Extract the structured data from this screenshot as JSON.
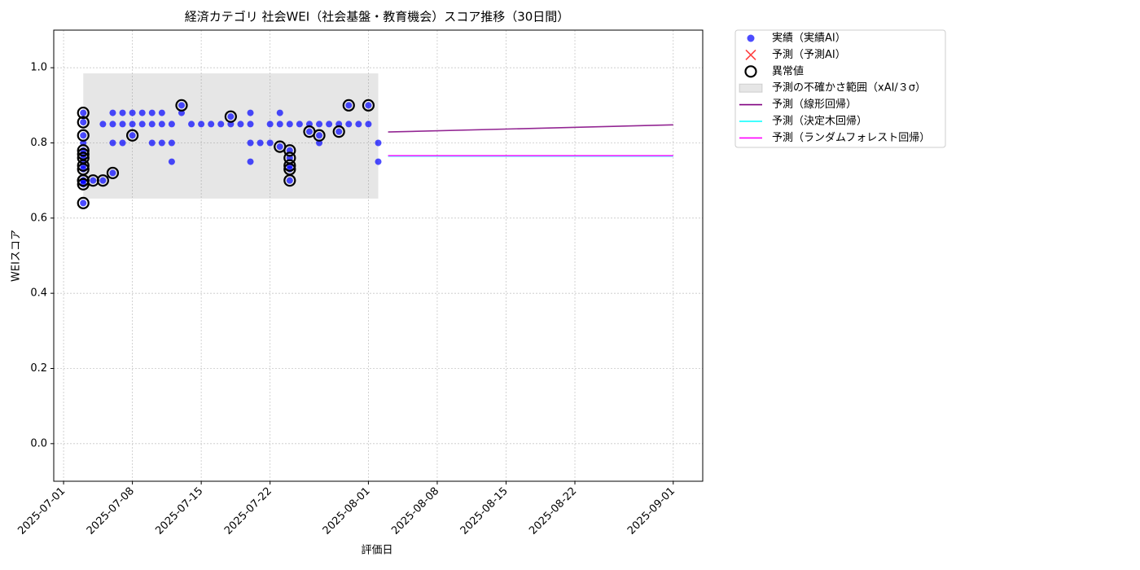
{
  "chart_data": {
    "type": "scatter",
    "title": "経済カテゴリ 社会WEI（社会基盤・教育機会）スコア推移（30日間）",
    "xlabel": "評価日",
    "ylabel": "WEIスコア",
    "xlim": [
      "2025-06-30",
      "2025-09-04"
    ],
    "ylim": [
      -0.1,
      1.1
    ],
    "xticks": [
      "2025-07-01",
      "2025-07-08",
      "2025-07-15",
      "2025-07-22",
      "2025-08-01",
      "2025-08-08",
      "2025-08-15",
      "2025-08-22",
      "2025-09-01"
    ],
    "yticks": [
      {
        "value": 0,
        "label": "0.0"
      },
      0.2,
      0.4,
      0.6,
      0.8,
      {
        "value": 1,
        "label": "1.0"
      }
    ],
    "grid": true,
    "legend_loc": "outside upper right",
    "series": [
      {
        "name": "実績（実績AI）",
        "type": "scatter",
        "marker": "dot",
        "color": "#0000ff",
        "x": [
          "2025-07-03",
          "2025-07-03",
          "2025-07-03",
          "2025-07-03",
          "2025-07-03",
          "2025-07-03",
          "2025-07-03",
          "2025-07-03",
          "2025-07-03",
          "2025-07-03",
          "2025-07-03",
          "2025-07-03",
          "2025-07-03",
          "2025-07-03",
          "2025-07-04",
          "2025-07-05",
          "2025-07-05",
          "2025-07-06",
          "2025-07-06",
          "2025-07-06",
          "2025-07-06",
          "2025-07-07",
          "2025-07-07",
          "2025-07-07",
          "2025-07-08",
          "2025-07-08",
          "2025-07-08",
          "2025-07-09",
          "2025-07-09",
          "2025-07-10",
          "2025-07-10",
          "2025-07-10",
          "2025-07-11",
          "2025-07-11",
          "2025-07-11",
          "2025-07-12",
          "2025-07-12",
          "2025-07-12",
          "2025-07-13",
          "2025-07-13",
          "2025-07-14",
          "2025-07-15",
          "2025-07-16",
          "2025-07-17",
          "2025-07-18",
          "2025-07-18",
          "2025-07-19",
          "2025-07-20",
          "2025-07-20",
          "2025-07-20",
          "2025-07-20",
          "2025-07-21",
          "2025-07-22",
          "2025-07-22",
          "2025-07-23",
          "2025-07-23",
          "2025-07-23",
          "2025-07-24",
          "2025-07-24",
          "2025-07-24",
          "2025-07-24",
          "2025-07-24",
          "2025-07-24",
          "2025-07-25",
          "2025-07-26",
          "2025-07-26",
          "2025-07-27",
          "2025-07-27",
          "2025-07-27",
          "2025-07-28",
          "2025-07-29",
          "2025-07-29",
          "2025-07-30",
          "2025-07-30",
          "2025-07-31",
          "2025-08-01",
          "2025-08-01",
          "2025-08-02",
          "2025-08-02"
        ],
        "values": [
          0.7,
          0.88,
          0.855,
          0.82,
          0.78,
          0.77,
          0.76,
          0.74,
          0.73,
          0.7,
          0.69,
          0.64,
          0.8,
          0.75,
          0.7,
          0.7,
          0.85,
          0.72,
          0.8,
          0.85,
          0.88,
          0.88,
          0.85,
          0.8,
          0.82,
          0.88,
          0.85,
          0.88,
          0.85,
          0.88,
          0.8,
          0.85,
          0.88,
          0.85,
          0.8,
          0.85,
          0.8,
          0.75,
          0.9,
          0.88,
          0.85,
          0.85,
          0.85,
          0.85,
          0.87,
          0.85,
          0.85,
          0.88,
          0.85,
          0.8,
          0.75,
          0.8,
          0.85,
          0.8,
          0.79,
          0.88,
          0.85,
          0.78,
          0.76,
          0.74,
          0.73,
          0.7,
          0.85,
          0.85,
          0.83,
          0.85,
          0.82,
          0.8,
          0.85,
          0.85,
          0.83,
          0.85,
          0.9,
          0.85,
          0.85,
          0.9,
          0.85,
          0.8,
          0.75
        ]
      },
      {
        "name": "予測（予測AI）",
        "type": "scatter",
        "marker": "x",
        "color": "#ff0000",
        "x": [],
        "values": []
      },
      {
        "name": "異常値",
        "type": "scatter",
        "marker": "ring",
        "color": "#000000",
        "x": [
          "2025-07-03",
          "2025-07-03",
          "2025-07-03",
          "2025-07-03",
          "2025-07-03",
          "2025-07-03",
          "2025-07-03",
          "2025-07-03",
          "2025-07-03",
          "2025-07-03",
          "2025-07-03",
          "2025-07-03",
          "2025-07-04",
          "2025-07-05",
          "2025-07-06",
          "2025-07-08",
          "2025-07-13",
          "2025-07-18",
          "2025-07-23",
          "2025-07-24",
          "2025-07-24",
          "2025-07-24",
          "2025-07-24",
          "2025-07-24",
          "2025-07-26",
          "2025-07-27",
          "2025-07-29",
          "2025-07-30",
          "2025-08-01"
        ],
        "values": [
          0.7,
          0.88,
          0.855,
          0.82,
          0.78,
          0.77,
          0.76,
          0.74,
          0.73,
          0.7,
          0.69,
          0.64,
          0.7,
          0.7,
          0.72,
          0.82,
          0.9,
          0.87,
          0.79,
          0.78,
          0.76,
          0.74,
          0.73,
          0.7,
          0.83,
          0.82,
          0.83,
          0.9,
          0.9
        ]
      },
      {
        "name": "予測の不確かさ範囲（xAI/３σ）",
        "type": "band",
        "color": "#808080",
        "x": [
          "2025-07-03",
          "2025-08-02"
        ],
        "lower": [
          0.652,
          0.652
        ],
        "upper": [
          0.985,
          0.985
        ]
      },
      {
        "name": "予測（線形回帰）",
        "type": "line",
        "color": "#800080",
        "x": [
          "2025-08-03",
          "2025-09-01"
        ],
        "values": [
          0.829,
          0.848
        ]
      },
      {
        "name": "予測（決定木回帰）",
        "type": "line",
        "color": "#00ffff",
        "x": [
          "2025-08-03",
          "2025-09-01"
        ],
        "values": [
          0.765,
          0.765
        ]
      },
      {
        "name": "予測（ランダムフォレスト回帰）",
        "type": "line",
        "color": "#ff00ff",
        "x": [
          "2025-08-03",
          "2025-09-01"
        ],
        "values": [
          0.766,
          0.766
        ]
      }
    ]
  }
}
